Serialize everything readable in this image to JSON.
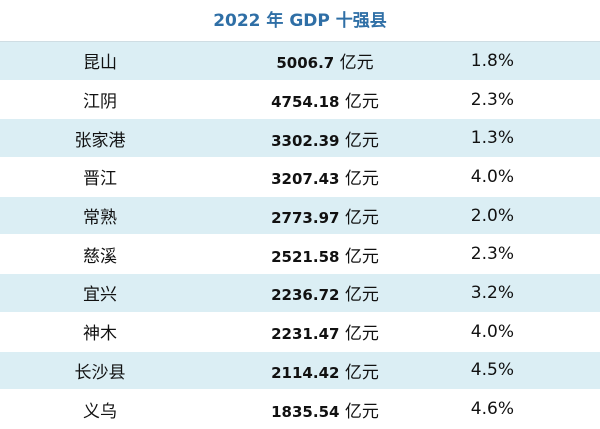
{
  "title": "2022 年 GDP 十强县",
  "table": {
    "rows": [
      [
        "昆山",
        "5006.7",
        "亿元",
        "1.8%"
      ],
      [
        "江阴",
        "4754.18",
        "亿元",
        "2.3%"
      ],
      [
        "张家港",
        "3302.39",
        "亿元",
        "1.3%"
      ],
      [
        "晋江",
        "3207.43",
        "亿元",
        "4.0%"
      ],
      [
        "常熟",
        "2773.97",
        "亿元",
        "2.0%"
      ],
      [
        "慈溪",
        "2521.58",
        "亿元",
        "2.3%"
      ],
      [
        "宜兴",
        "2236.72",
        "亿元",
        "3.2%"
      ],
      [
        "神木",
        "2231.47",
        "亿元",
        "4.0%"
      ],
      [
        "长沙县",
        "2114.42",
        "亿元",
        "4.5%"
      ],
      [
        "义乌",
        "1835.54",
        "亿元",
        "4.6%"
      ]
    ]
  }
}
